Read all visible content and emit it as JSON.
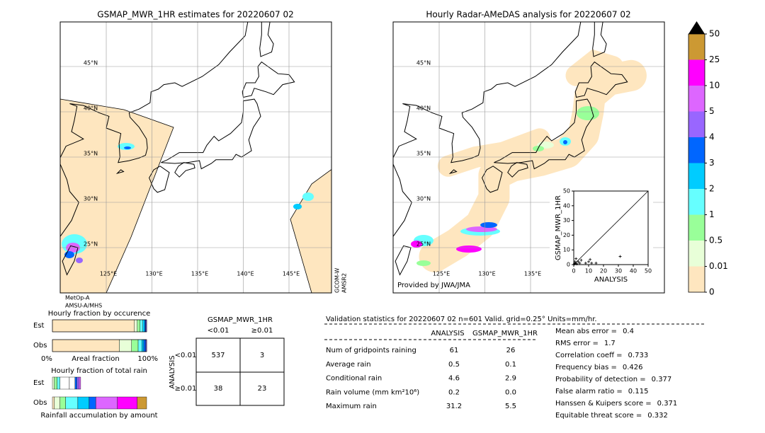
{
  "left_map": {
    "title": "GSMAP_MWR_1HR estimates for 20220607 02",
    "lat_lines": [
      {
        "value": 45,
        "label": "45°N"
      },
      {
        "value": 40,
        "label": "40°N"
      },
      {
        "value": 35,
        "label": "35°N"
      },
      {
        "value": 30,
        "label": "30°N"
      },
      {
        "value": 25,
        "label": "25°N"
      }
    ],
    "lon_lines": [
      {
        "value": 125,
        "label": "125°E"
      },
      {
        "value": 130,
        "label": "130°E"
      },
      {
        "value": 135,
        "label": "135°E"
      },
      {
        "value": 140,
        "label": "140°E"
      },
      {
        "value": 145,
        "label": "145°E"
      }
    ],
    "sensors_below": [
      "MetOp-A",
      "AMSU-A/MHS"
    ],
    "sensors_side": [
      "GCOM-W",
      "AMSR2"
    ]
  },
  "right_map": {
    "title": "Hourly Radar-AMeDAS analysis for 20220607 02",
    "lat_lines": [
      {
        "value": 45,
        "label": "45°N"
      },
      {
        "value": 40,
        "label": "40°N"
      },
      {
        "value": 35,
        "label": "35°N"
      },
      {
        "value": 30,
        "label": "30°N"
      },
      {
        "value": 25,
        "label": "25°N"
      }
    ],
    "lon_lines": [
      {
        "value": 125,
        "label": "125°E"
      },
      {
        "value": 130,
        "label": "130°E"
      },
      {
        "value": 135,
        "label": "135°E"
      }
    ],
    "credit": "Provided by JWA/JMA"
  },
  "colorbar": {
    "ticks": [
      0,
      0.01,
      0.5,
      1,
      2,
      3,
      4,
      5,
      10,
      25,
      50
    ],
    "colors": [
      "#fee6bf",
      "#e8ffd8",
      "#99ff99",
      "#66ffff",
      "#00ccff",
      "#0066ff",
      "#9966ff",
      "#dd66ff",
      "#ff00ff",
      "#cc9933"
    ],
    "over_color": "#000000"
  },
  "chart_data": {
    "type": "scatter",
    "xlabel": "ANALYSIS",
    "ylabel": "GSMAP_MWR_1HR",
    "xlim": [
      0,
      50
    ],
    "ylim": [
      0,
      50
    ],
    "xticks": [
      0,
      10,
      20,
      30,
      40,
      50
    ],
    "yticks": [
      0,
      10,
      20,
      30,
      40,
      50
    ],
    "x": [
      0.5,
      1,
      2,
      3,
      4,
      5,
      8,
      10,
      11,
      12,
      15,
      31.2,
      1.5,
      0.8
    ],
    "values": [
      0.5,
      1,
      0.5,
      2,
      1,
      3,
      1,
      2,
      3.5,
      1,
      1,
      5.5,
      4,
      2
    ]
  },
  "fractions": {
    "occurrence_title": "Hourly fraction by occurence",
    "rain_title": "Hourly fraction of total rain",
    "row_labels": [
      "Est",
      "Obs"
    ],
    "axis_left": "0%",
    "axis_mid": "Areal fraction",
    "axis_right": "100%",
    "rain_axis": "Rainfall accumulation by amount",
    "occurrence": [
      [
        {
          "color": "#fee6bf",
          "value": 0.87
        },
        {
          "color": "#e8ffd8",
          "value": 0.03
        },
        {
          "color": "#99ff99",
          "value": 0.03
        },
        {
          "color": "#66ffff",
          "value": 0.03
        },
        {
          "color": "#00ccff",
          "value": 0.02
        },
        {
          "color": "#0066ff",
          "value": 0.01
        },
        {
          "color": "#9966ff",
          "value": 0.01
        }
      ],
      [
        {
          "color": "#fee6bf",
          "value": 0.71
        },
        {
          "color": "#e8ffd8",
          "value": 0.13
        },
        {
          "color": "#99ff99",
          "value": 0.07
        },
        {
          "color": "#66ffff",
          "value": 0.04
        },
        {
          "color": "#00ccff",
          "value": 0.02
        },
        {
          "color": "#0066ff",
          "value": 0.02
        },
        {
          "color": "#9966ff",
          "value": 0.01
        }
      ]
    ],
    "rain": [
      [
        {
          "color": "#e8ffd8",
          "value": 0.02
        },
        {
          "color": "#99ff99",
          "value": 0.03
        },
        {
          "color": "#66ffff",
          "value": 0.03
        },
        {
          "color": "#ffffff",
          "value": 0.1
        },
        {
          "color": "#ffffff",
          "value": 0.06
        },
        {
          "color": "#0066ff",
          "value": 0.02
        },
        {
          "color": "#9966ff",
          "value": 0.02
        },
        {
          "color": "#dd66ff",
          "value": 0.02
        }
      ],
      [
        {
          "color": "#fee6bf",
          "value": 0.02
        },
        {
          "color": "#e8ffd8",
          "value": 0.06
        },
        {
          "color": "#99ff99",
          "value": 0.06
        },
        {
          "color": "#66ffff",
          "value": 0.13
        },
        {
          "color": "#00ccff",
          "value": 0.12
        },
        {
          "color": "#0066ff",
          "value": 0.07
        },
        {
          "color": "#dd66ff",
          "value": 0.23
        },
        {
          "color": "#ff00ff",
          "value": 0.21
        },
        {
          "color": "#cc9933",
          "value": 0.1
        }
      ]
    ]
  },
  "contingency": {
    "title": "GSMAP_MWR_1HR",
    "col_labels": [
      "<0.01",
      "≥0.01"
    ],
    "row_title": "ANALYSIS",
    "row_labels": [
      "<0.01",
      "≥0.01"
    ],
    "cells": [
      [
        537,
        3
      ],
      [
        38,
        23
      ]
    ]
  },
  "validation": {
    "title": "Validation statistics for 20220607 02  n=601 Valid. grid=0.25° Units=mm/hr.",
    "columns": [
      "ANALYSIS",
      "GSMAP_MWR_1HR"
    ],
    "rows": [
      [
        "Num of gridpoints raining",
        "61",
        "26"
      ],
      [
        "Average rain",
        "0.5",
        "0.1"
      ],
      [
        "Conditional rain",
        "4.6",
        "2.9"
      ],
      [
        "Rain volume (mm km²10⁶)",
        "0.2",
        "0.0"
      ],
      [
        "Maximum rain",
        "31.2",
        "5.5"
      ]
    ],
    "scores": [
      {
        "label": "Mean abs error =",
        "value": "0.4"
      },
      {
        "label": "RMS error =",
        "value": "1.7"
      },
      {
        "label": "Correlation coeff =",
        "value": "0.733"
      },
      {
        "label": "Frequency bias =",
        "value": "0.426"
      },
      {
        "label": "Probability of detection =",
        "value": "0.377"
      },
      {
        "label": "False alarm ratio =",
        "value": "0.115"
      },
      {
        "label": "Hanssen & Kuipers score =",
        "value": "0.371"
      },
      {
        "label": "Equitable threat score =",
        "value": "0.332"
      }
    ]
  }
}
